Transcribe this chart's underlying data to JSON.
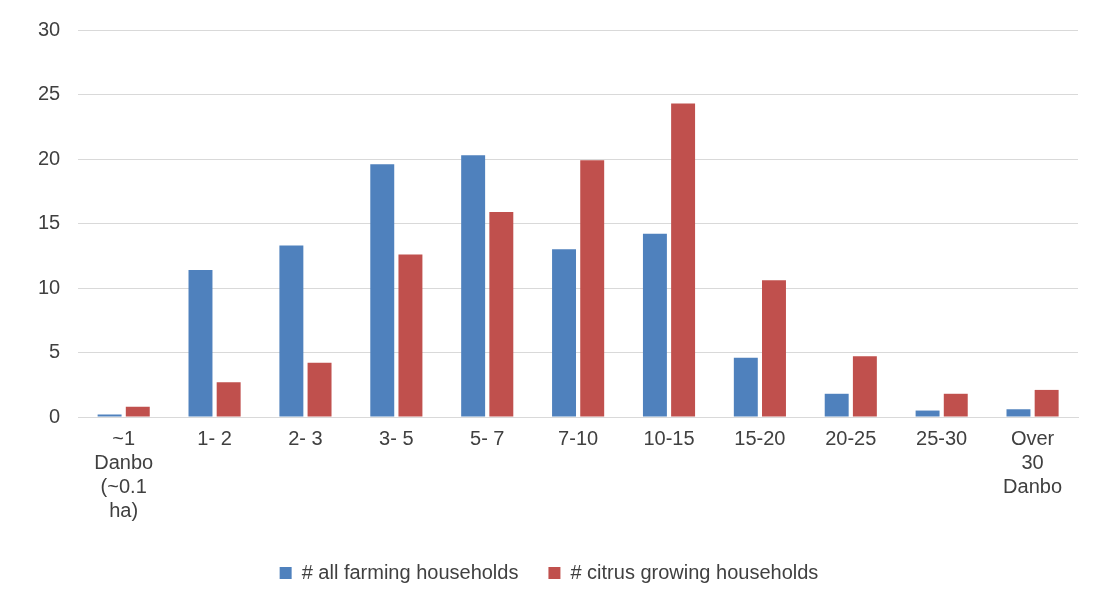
{
  "chart_data": {
    "type": "bar",
    "categories": [
      "~1 Danbo (~0.1 ha)",
      "1- 2",
      "2- 3",
      "3- 5",
      "5- 7",
      "7-10",
      "10-15",
      "15-20",
      "20-25",
      "25-30",
      "Over 30 Danbo"
    ],
    "series": [
      {
        "name": "# all farming households",
        "color": "#4f81bd",
        "values": [
          0.2,
          11.4,
          13.3,
          19.6,
          20.3,
          13.0,
          14.2,
          4.6,
          1.8,
          0.5,
          0.6
        ]
      },
      {
        "name": "# citrus growing households",
        "color": "#c0504d",
        "values": [
          0.8,
          2.7,
          4.2,
          12.6,
          15.9,
          19.9,
          24.3,
          10.6,
          4.7,
          1.8,
          2.1
        ]
      }
    ],
    "ylim": [
      0,
      30
    ],
    "yticks": [
      0,
      5,
      10,
      15,
      20,
      25,
      30
    ],
    "grid": "y",
    "legend": "bottom"
  }
}
